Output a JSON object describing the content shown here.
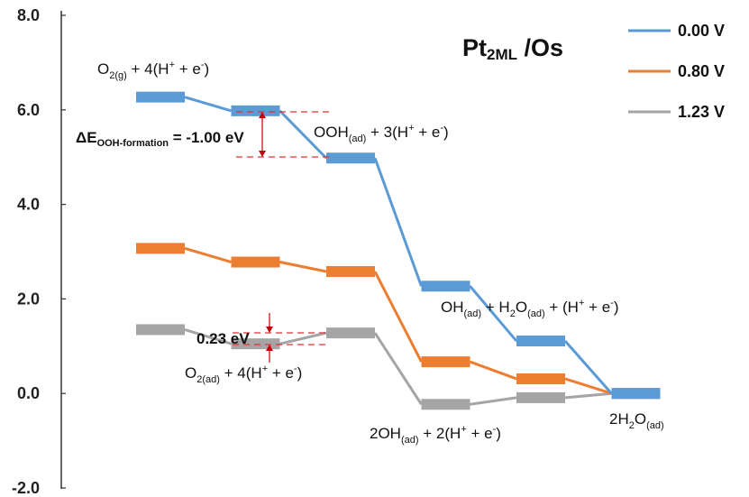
{
  "chart_data": {
    "type": "line",
    "title_main": "Pt",
    "title_sub": "2ML",
    "title_rest": " /Os",
    "ylim": [
      -2.0,
      8.0
    ],
    "y_ticks": [
      "-2.0",
      "0.0",
      "2.0",
      "4.0",
      "6.0",
      "8.0"
    ],
    "y_tick_values": [
      -2,
      0,
      2,
      4,
      6,
      8
    ],
    "x": [
      1,
      2,
      3,
      4,
      5,
      6
    ],
    "legend_position": "top-right",
    "series": [
      {
        "name": "0.00 V",
        "color": "#5B9BD5",
        "values": [
          6.27,
          5.98,
          4.98,
          2.27,
          1.11,
          0.0
        ]
      },
      {
        "name": "0.80 V",
        "color": "#ED7D31",
        "values": [
          3.07,
          2.78,
          2.58,
          0.67,
          0.31,
          0.0
        ]
      },
      {
        "name": "1.23 V",
        "color": "#A5A5A5",
        "values": [
          1.35,
          1.05,
          1.28,
          -0.23,
          -0.09,
          0.0
        ]
      }
    ],
    "annotations": {
      "o2g": {
        "a": "O",
        "a_sub": "2(g)",
        "b": " + 4(H",
        "b_sup": "+",
        "c": " + e",
        "c_sup": "-",
        "d": ")"
      },
      "ooh": {
        "a": "OOH",
        "a_sub": "(ad)",
        "b": " + 3(H",
        "b_sup": "+",
        "c": " + e",
        "c_sup": "-",
        "d": ")"
      },
      "oh": {
        "a": "OH",
        "a_sub": "(ad)",
        "b": " + H",
        "b_sub": "2",
        "c": "O",
        "c_sub": "(ad)",
        "d": " + (H",
        "d_sup": "+",
        "e": " + e",
        "e_sup": "-",
        "f": ")"
      },
      "o2ad": {
        "a": "O",
        "a_sub": "2(ad)",
        "b": " + 4(H",
        "b_sup": "+",
        "c": " + e",
        "c_sup": "-",
        "d": ")"
      },
      "twooh": {
        "a": "2OH",
        "a_sub": "(ad)",
        "b": " + 2(H",
        "b_sup": "+",
        "c": " + e",
        "c_sup": "-",
        "d": ")"
      },
      "h2o": {
        "a": "2H",
        "a_sub": "2",
        "b": "O",
        "b_sub": "(ad)"
      },
      "delta_ooh": {
        "a": "ΔE",
        "a_sub": "OOH-formation",
        "b": " = -1.00 eV"
      },
      "delta_023": {
        "a": "0.23 eV"
      }
    }
  }
}
